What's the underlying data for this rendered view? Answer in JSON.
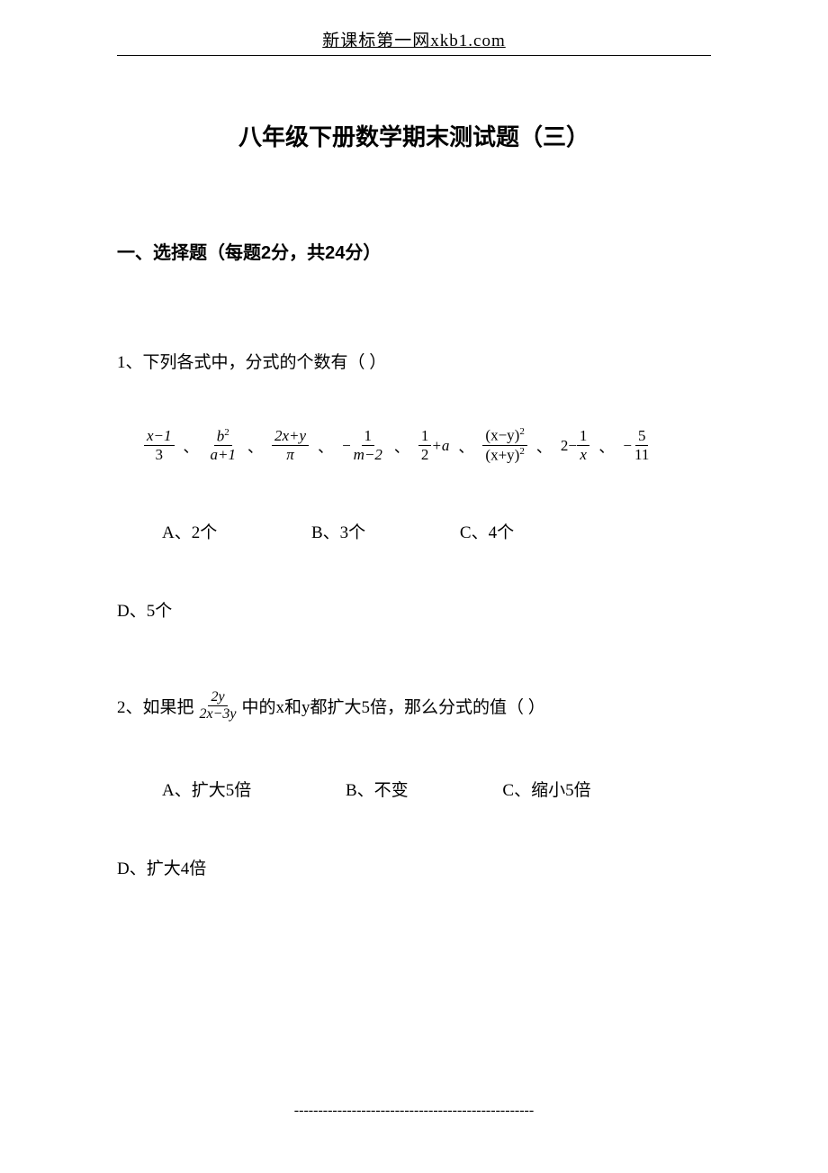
{
  "header": "新课标第一网xkb1.com",
  "title": "八年级下册数学期末测试题（三）",
  "section1": "一、选择题（每题2分，共24分）",
  "q1": {
    "text": "1、下列各式中，分式的个数有（  ）",
    "optA": "A、2个",
    "optB": "B、3个",
    "optC": "C、4个",
    "optD": "D、5个"
  },
  "q2": {
    "prefix": "2、如果把",
    "suffix": "中的x和y都扩大5倍，那么分式的值（   ）",
    "optA": "A、扩大5倍",
    "optB": "B、不变",
    "optC": "C、缩小5倍",
    "optD": "D、扩大4倍"
  },
  "footer": "--------------------------------------------------",
  "formulas": {
    "f1_num": "x−1",
    "f1_den": "3",
    "f2_num_b": "b",
    "f2_num_sup": "2",
    "f2_den": "a+1",
    "f3_num": "2x+y",
    "f3_den": "π",
    "f4_pre": "−",
    "f4_num": "1",
    "f4_den": "m−2",
    "f5_num": "1",
    "f5_den": "2",
    "f5_post": "+a",
    "f6_num_base": "(x−y)",
    "f6_sup": "2",
    "f6_den_base": "(x+y)",
    "f7_pre": "2−",
    "f7_num": "1",
    "f7_den": "x",
    "f8_pre": "−",
    "f8_num": "5",
    "f8_den": "11",
    "q2_num": "2y",
    "q2_den": "2x−3y",
    "separator": "、"
  },
  "styling": {
    "body_width": 920,
    "body_height": 1302,
    "background_color": "#ffffff",
    "text_color": "#000000",
    "title_fontsize": 26,
    "body_fontsize": 19,
    "formula_fontsize": 17,
    "header_font": "SimSun",
    "title_font": "SimHei"
  }
}
